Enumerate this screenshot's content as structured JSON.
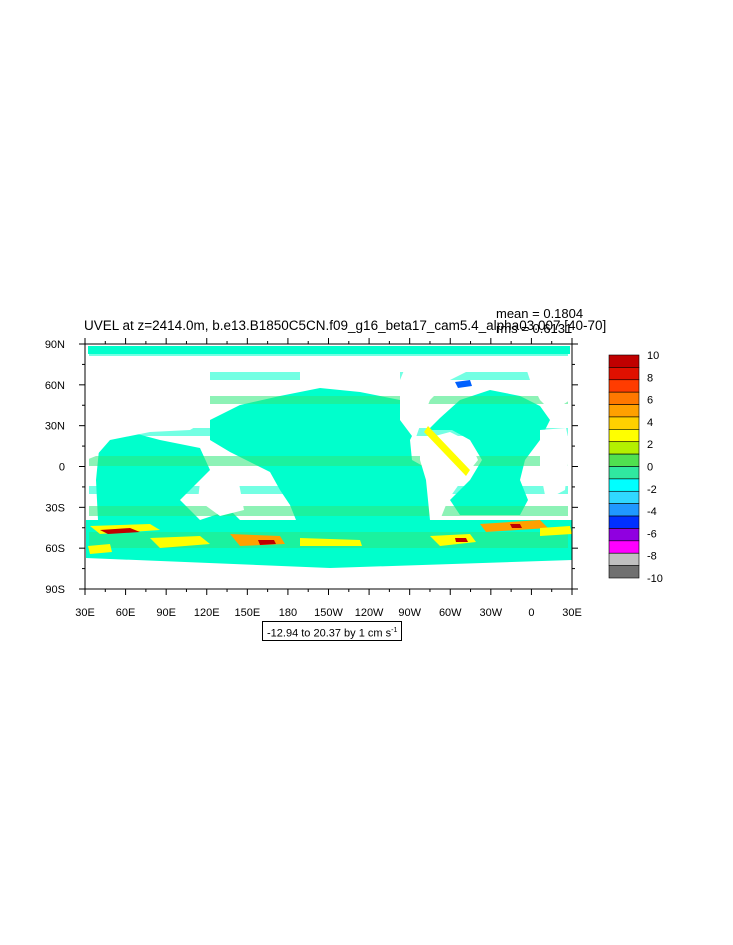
{
  "chart_data": {
    "type": "heatmap",
    "title": "UVEL at z=2414.0m, b.e13.B1850C5CN.f09_g16_beta17_cam5.4_alpha03.007 [40-70]",
    "stats": {
      "mean": "mean = 0.1804",
      "rms": "rms = 0.6131"
    },
    "range_label": "-12.94 to 20.37 by 1 cm s",
    "range_unit_sup": "-1",
    "x_ticks": [
      "30E",
      "60E",
      "90E",
      "120E",
      "150E",
      "180",
      "150W",
      "120W",
      "90W",
      "60W",
      "30W",
      "0",
      "30E"
    ],
    "y_ticks": [
      "90N",
      "60N",
      "30N",
      "0",
      "30S",
      "60S",
      "90S"
    ],
    "colorbar": {
      "levels": [
        "10",
        "8",
        "6",
        "4",
        "2",
        "0",
        "-2",
        "-4",
        "-6",
        "-8",
        "-10"
      ],
      "colors": [
        "#c00000",
        "#e01000",
        "#ff3c00",
        "#ff7800",
        "#ffa000",
        "#ffd000",
        "#ffff00",
        "#b4f000",
        "#50e050",
        "#30e8a0",
        "#00ffff",
        "#30d8ff",
        "#2098ff",
        "#0030ff",
        "#9000e0",
        "#ff00ff",
        "#c0c0c0",
        "#707070"
      ]
    },
    "field_colors": {
      "background": "#ffffff",
      "ocean_a": "#00ffcc",
      "ocean_b": "#2fe87a",
      "warm": "#ffff00",
      "hot": "#ffa000",
      "extreme": "#c00000",
      "cold": "#0060ff"
    }
  }
}
